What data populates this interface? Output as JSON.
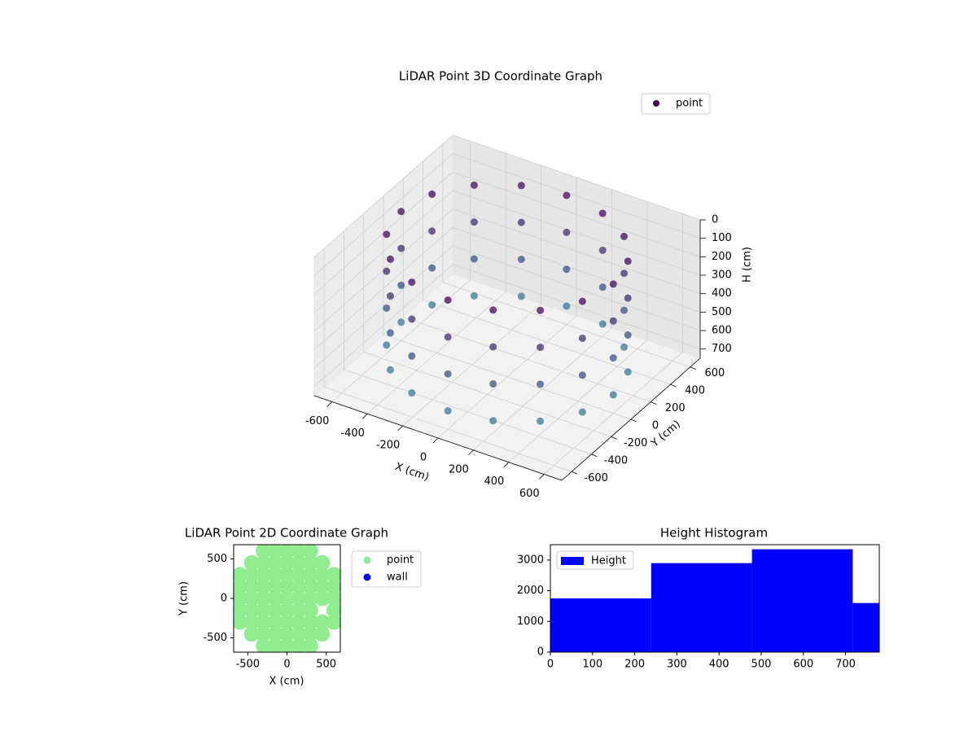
{
  "chart_data": [
    {
      "type": "scatter3d",
      "title": "LiDAR Point 3D Coordinate Graph",
      "xlabel": "X (cm)",
      "ylabel": "Y (cm)",
      "zlabel": "H (cm)",
      "xlim": [
        -700,
        700
      ],
      "ylim": [
        -700,
        700
      ],
      "zlim": [
        750,
        0
      ],
      "xticks": [
        -600,
        -400,
        -200,
        0,
        200,
        400,
        600
      ],
      "yticks": [
        -600,
        -400,
        -200,
        0,
        200,
        400,
        600
      ],
      "zticks": [
        0,
        100,
        200,
        300,
        400,
        500,
        600,
        700
      ],
      "grid": true,
      "legend": "upper right",
      "colormap": [
        "#440154",
        "#3a8aa3"
      ],
      "series": [
        {
          "name": "point",
          "color": "#440154",
          "x": [
            600,
            554,
            424,
            230,
            0,
            -230,
            -424,
            -554,
            -600,
            -554,
            -424,
            -230,
            0,
            230,
            424,
            554,
            600,
            554,
            424,
            230,
            0,
            -230,
            -424,
            -554,
            -600,
            -554,
            -424,
            -230,
            0,
            230,
            424,
            554,
            600,
            554,
            424,
            230,
            0,
            -230,
            -424,
            -554,
            -600,
            -554,
            -424,
            -230,
            0,
            230,
            424,
            554,
            600,
            554,
            424,
            230,
            0,
            -230,
            -424,
            -554,
            -600,
            -554,
            -424,
            -230,
            0,
            230,
            424,
            554
          ],
          "y": [
            0,
            230,
            424,
            554,
            600,
            554,
            424,
            230,
            0,
            -230,
            -424,
            -554,
            -600,
            -554,
            -424,
            -230,
            0,
            230,
            424,
            554,
            600,
            554,
            424,
            230,
            0,
            -230,
            -424,
            -554,
            -600,
            -554,
            -424,
            -230,
            0,
            230,
            424,
            554,
            600,
            554,
            424,
            230,
            0,
            -230,
            -424,
            -554,
            -600,
            -554,
            -424,
            -230,
            0,
            230,
            424,
            554,
            600,
            554,
            424,
            230,
            0,
            -230,
            -424,
            -554,
            -600,
            -554,
            -424,
            -230
          ],
          "z": [
            50,
            50,
            50,
            50,
            50,
            50,
            50,
            50,
            50,
            50,
            50,
            50,
            50,
            50,
            50,
            50,
            250,
            250,
            250,
            250,
            250,
            250,
            250,
            250,
            250,
            250,
            250,
            250,
            250,
            250,
            250,
            250,
            450,
            450,
            450,
            450,
            450,
            450,
            450,
            450,
            450,
            450,
            450,
            450,
            450,
            450,
            450,
            450,
            650,
            650,
            650,
            650,
            650,
            650,
            650,
            650,
            650,
            650,
            650,
            650,
            650,
            650,
            650,
            650
          ]
        }
      ]
    },
    {
      "type": "scatter",
      "title": "LiDAR Point 2D Coordinate Graph",
      "xlabel": "X (cm)",
      "ylabel": "Y (cm)",
      "xlim": [
        -680,
        680
      ],
      "ylim": [
        -680,
        680
      ],
      "xticks": [
        -500,
        0,
        500
      ],
      "yticks": [
        -500,
        0,
        500
      ],
      "legend": "outside right",
      "series": [
        {
          "name": "point",
          "color": "#90ee90",
          "x": [
            -300,
            -150,
            0,
            150,
            300,
            -450,
            -300,
            -150,
            0,
            150,
            300,
            450,
            -600,
            -450,
            -300,
            -150,
            0,
            150,
            300,
            450,
            600,
            -600,
            -450,
            -300,
            -150,
            0,
            150,
            300,
            450,
            600,
            -600,
            -450,
            -300,
            -150,
            0,
            150,
            300,
            450,
            600,
            -600,
            -450,
            -300,
            -150,
            0,
            150,
            300,
            600,
            -600,
            -450,
            -300,
            -150,
            0,
            150,
            300,
            450,
            600,
            -450,
            -300,
            -150,
            0,
            150,
            300,
            450,
            -300,
            -150,
            0,
            150,
            300
          ],
          "y": [
            600,
            600,
            600,
            600,
            600,
            450,
            450,
            450,
            450,
            450,
            450,
            450,
            300,
            300,
            300,
            300,
            300,
            300,
            300,
            300,
            300,
            150,
            150,
            150,
            150,
            150,
            150,
            150,
            150,
            150,
            0,
            0,
            0,
            0,
            0,
            0,
            0,
            0,
            0,
            -150,
            -150,
            -150,
            -150,
            -150,
            -150,
            -150,
            -150,
            -300,
            -300,
            -300,
            -300,
            -300,
            -300,
            -300,
            -300,
            -300,
            -450,
            -450,
            -450,
            -450,
            -450,
            -450,
            -450,
            -600,
            -600,
            -600,
            -600,
            -600
          ]
        },
        {
          "name": "wall",
          "color": "#0000ff",
          "x": [],
          "y": []
        }
      ]
    },
    {
      "type": "histogram",
      "title": "Height Histogram",
      "bins": [
        0,
        239,
        478,
        717,
        780
      ],
      "values": [
        1750,
        2900,
        3350,
        1600
      ],
      "color": "#0000ff",
      "name": "Height",
      "xlim": [
        0,
        780
      ],
      "ylim": [
        0,
        3500
      ],
      "xticks": [
        0,
        100,
        200,
        300,
        400,
        500,
        600,
        700
      ],
      "yticks": [
        0,
        1000,
        2000,
        3000
      ],
      "legend": "upper left"
    }
  ]
}
